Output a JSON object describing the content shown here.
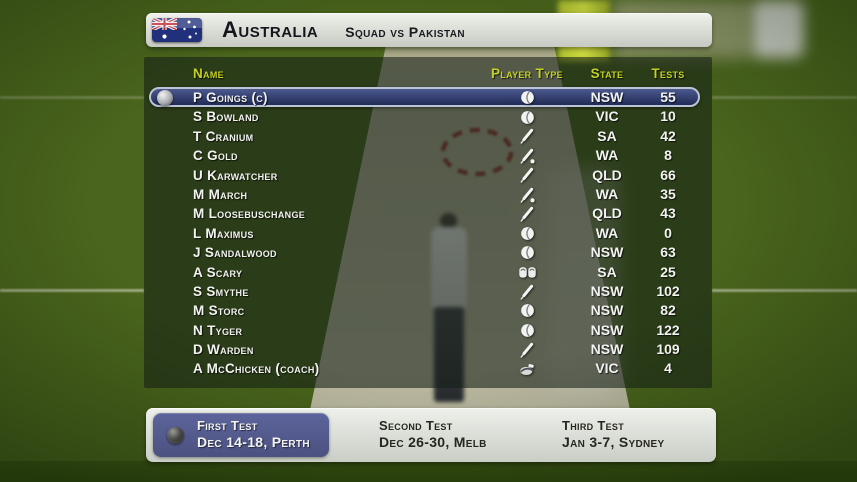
{
  "header": {
    "title": "Australia",
    "subtitle": "Squad vs Pakistan",
    "flag": "australia-flag"
  },
  "table": {
    "columns": {
      "name": "Name",
      "player_type": "Player Type",
      "state": "State",
      "tests": "Tests"
    },
    "players": [
      {
        "name": "P Goings (c)",
        "type": "bowler",
        "state": "NSW",
        "tests": "55",
        "selected": true
      },
      {
        "name": "S Bowland",
        "type": "bowler",
        "state": "VIC",
        "tests": "10"
      },
      {
        "name": "T Cranium",
        "type": "batsman",
        "state": "SA",
        "tests": "42"
      },
      {
        "name": "C Gold",
        "type": "all-rounder",
        "state": "WA",
        "tests": "8"
      },
      {
        "name": "U Karwatcher",
        "type": "batsman",
        "state": "QLD",
        "tests": "66"
      },
      {
        "name": "M March",
        "type": "all-rounder",
        "state": "WA",
        "tests": "35"
      },
      {
        "name": "M Loosebuschange",
        "type": "batsman",
        "state": "QLD",
        "tests": "43"
      },
      {
        "name": "L Maximus",
        "type": "bowler",
        "state": "WA",
        "tests": "0"
      },
      {
        "name": "J Sandalwood",
        "type": "bowler",
        "state": "NSW",
        "tests": "63"
      },
      {
        "name": "A Scary",
        "type": "wicketkeeper",
        "state": "SA",
        "tests": "25"
      },
      {
        "name": "S Smythe",
        "type": "batsman",
        "state": "NSW",
        "tests": "102"
      },
      {
        "name": "M Storc",
        "type": "bowler",
        "state": "NSW",
        "tests": "82"
      },
      {
        "name": "N Tyger",
        "type": "bowler",
        "state": "NSW",
        "tests": "122"
      },
      {
        "name": "D Warden",
        "type": "batsman",
        "state": "NSW",
        "tests": "109"
      },
      {
        "name": "A McChicken (coach)",
        "type": "coach",
        "state": "VIC",
        "tests": "4"
      }
    ]
  },
  "schedule": {
    "items": [
      {
        "title": "First Test",
        "detail": "Dec 14-18, Perth",
        "selected": true
      },
      {
        "title": "Second Test",
        "detail": "Dec 26-30, Melb"
      },
      {
        "title": "Third Test",
        "detail": "Jan 3-7, Sydney"
      }
    ]
  },
  "colors": {
    "accent_yellow": "#c3d222",
    "selected_navy": "#2d3968",
    "schedule_highlight": "#575e92",
    "field_green": "#4a651c"
  }
}
